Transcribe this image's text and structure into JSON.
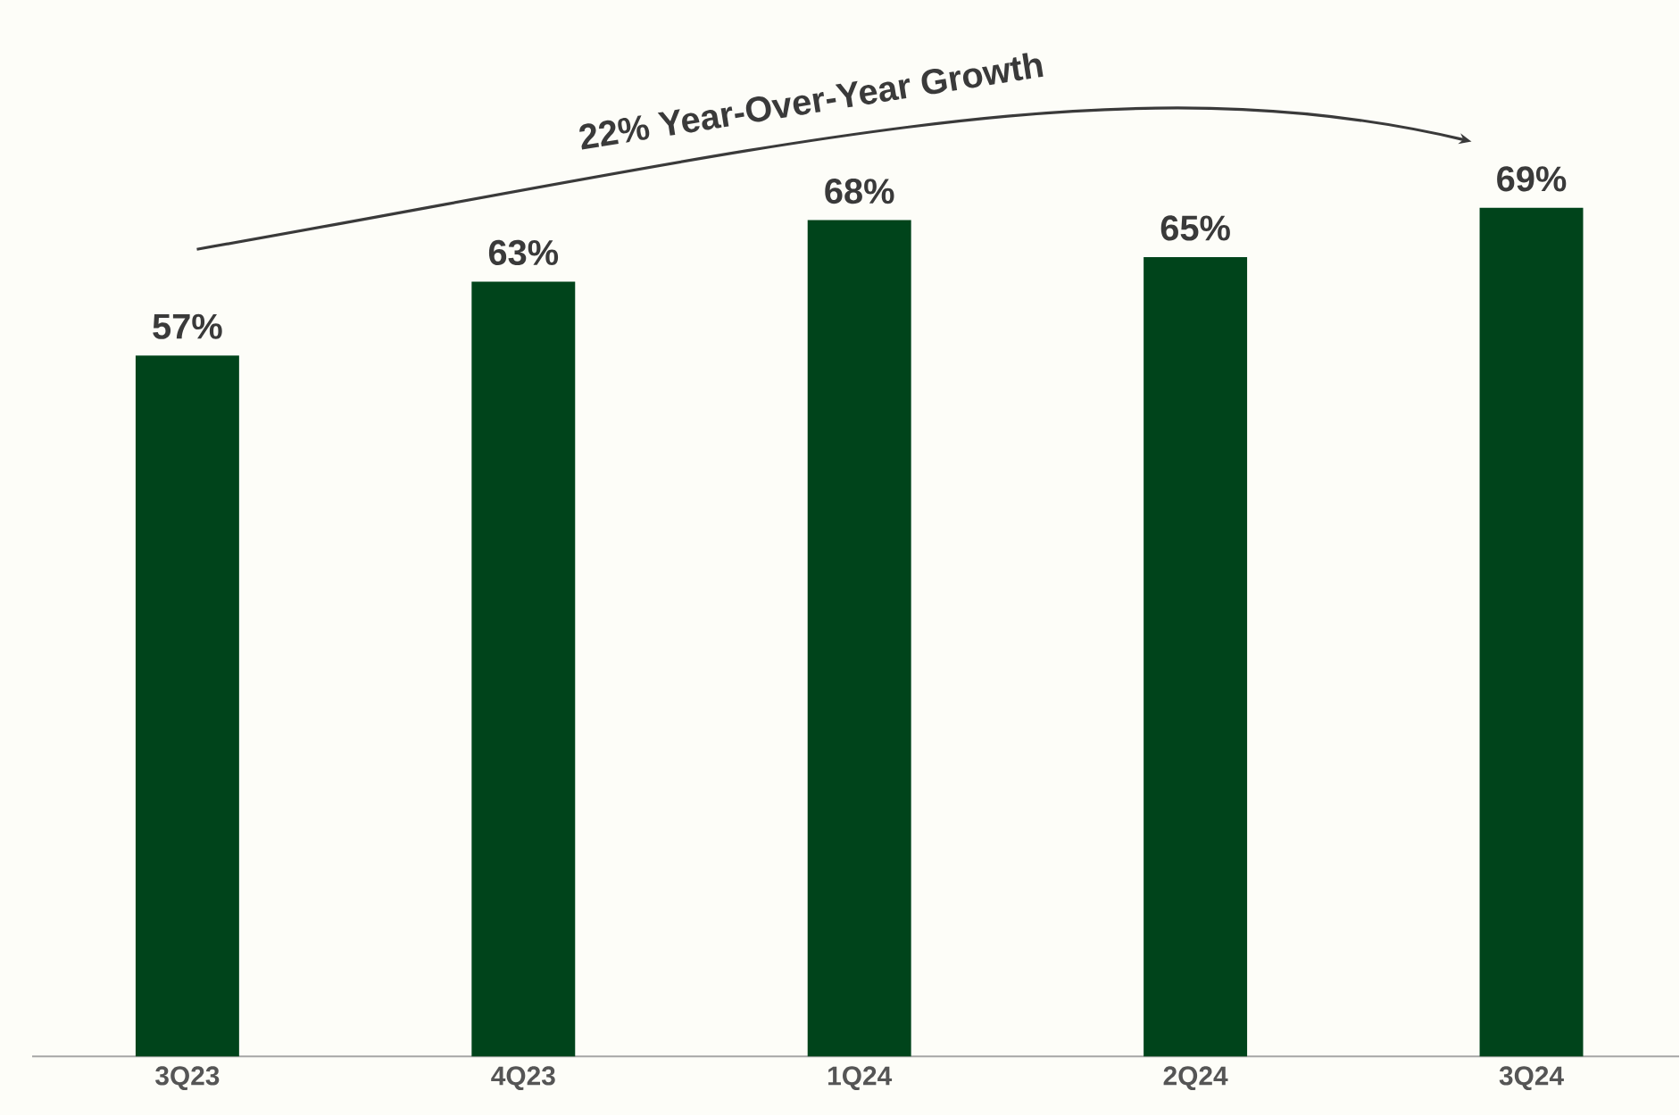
{
  "chart_data": {
    "type": "bar",
    "categories": [
      "3Q23",
      "4Q23",
      "1Q24",
      "2Q24",
      "3Q24"
    ],
    "values": [
      57,
      63,
      68,
      65,
      69
    ],
    "value_labels": [
      "57%",
      "63%",
      "68%",
      "65%",
      "69%"
    ],
    "color": "#00441b",
    "annotations": [
      "22% Year-Over-Year Growth"
    ],
    "tick_labels": "x"
  }
}
